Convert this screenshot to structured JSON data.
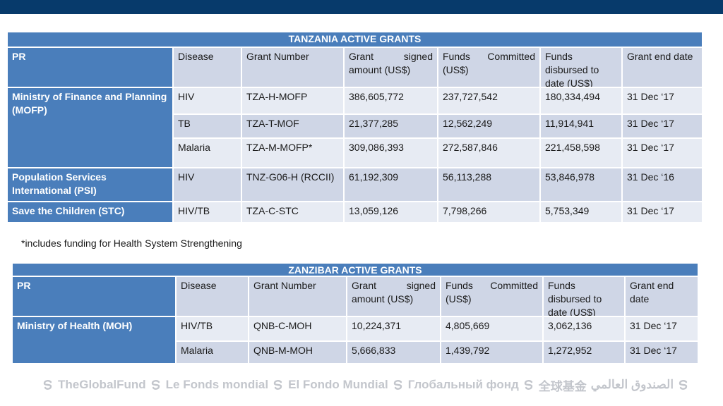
{
  "tanzania": {
    "title": "TANZANIA ACTIVE GRANTS",
    "headers": {
      "pr": "PR",
      "disease": "Disease",
      "grant_number": "Grant Number",
      "signed": "Grant signed amount (US$)",
      "committed": "Funds Committed (US$)",
      "disbursed": "Funds disbursed to date (US$)",
      "end": "Grant end date"
    },
    "prs": [
      "Ministry of Finance and Planning (MOFP)",
      "Population Services International (PSI)",
      "Save the Children (STC)"
    ],
    "rows": [
      {
        "disease": "HIV",
        "grant": "TZA-H-MOFP",
        "signed": "386,605,772",
        "committed": "237,727,542",
        "disbursed": "180,334,494",
        "end": "31 Dec ‘17"
      },
      {
        "disease": "TB",
        "grant": "TZA-T-MOF",
        "signed": "21,377,285",
        "committed": "12,562,249",
        "disbursed": "11,914,941",
        "end": "31 Dec ‘17"
      },
      {
        "disease": "Malaria",
        "grant": "TZA-M-MOFP*",
        "signed": "309,086,393",
        "committed": "272,587,846",
        "disbursed": "221,458,598",
        "end": "31 Dec ‘17"
      },
      {
        "disease": "HIV",
        "grant": "TNZ-G06-H (RCCII)",
        "signed": "61,192,309",
        "committed": "56,113,288",
        "disbursed": "53,846,978",
        "end": "31 Dec ‘16"
      },
      {
        "disease": "HIV/TB",
        "grant": "TZA-C-STC",
        "signed": "13,059,126",
        "committed": "7,798,266",
        "disbursed": "5,753,349",
        "end": "31 Dec ‘17"
      }
    ]
  },
  "footnote": "*includes funding for Health System Strengthening",
  "zanzibar": {
    "title": "ZANZIBAR ACTIVE GRANTS",
    "headers": {
      "pr": "PR",
      "disease": "Disease",
      "grant_number": "Grant Number",
      "signed": "Grant signed amount (US$)",
      "committed": "Funds Committed (US$)",
      "disbursed": "Funds disbursed to date (US$)",
      "end": "Grant end date"
    },
    "prs": [
      "Ministry of Health (MOH)"
    ],
    "rows": [
      {
        "disease": "HIV/TB",
        "grant": "QNB-C-MOH",
        "signed": "10,224,371",
        "committed": "4,805,669",
        "disbursed": "3,062,136",
        "end": "31 Dec ‘17"
      },
      {
        "disease": "Malaria",
        "grant": "QNB-M-MOH",
        "signed": "5,666,833",
        "committed": "1,439,792",
        "disbursed": "1,272,952",
        "end": "31 Dec ‘17"
      }
    ]
  },
  "footer": {
    "names": [
      "TheGlobalFund",
      "Le Fonds mondial",
      "El Fondo Mundial",
      "Глобальный фонд",
      "全球基金",
      "الصندوق العالمي"
    ],
    "icon": "global-fund-swirl-icon",
    "color": "#c3c6cc"
  },
  "colors": {
    "topbar": "#073a6b",
    "header_blue": "#4a7ebb",
    "row_dark": "#cfd6e6",
    "row_light": "#e7ebf3"
  }
}
